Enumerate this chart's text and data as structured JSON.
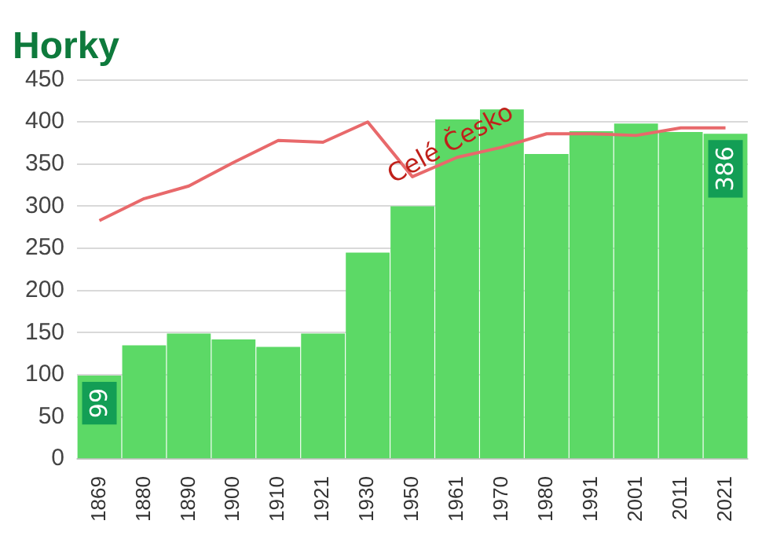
{
  "chart_data": {
    "type": "bar",
    "title": "Horky",
    "categories": [
      "1869",
      "1880",
      "1890",
      "1900",
      "1910",
      "1921",
      "1930",
      "1950",
      "1961",
      "1970",
      "1980",
      "1991",
      "2001",
      "2011",
      "2021"
    ],
    "series": [
      {
        "color": "#5cd966",
        "values": [
          99,
          135,
          149,
          142,
          133,
          149,
          245,
          300,
          403,
          415,
          362,
          389,
          398,
          388,
          386
        ],
        "value_labels": [
          "99",
          null,
          null,
          null,
          null,
          null,
          null,
          null,
          null,
          null,
          null,
          null,
          null,
          null,
          "386"
        ]
      },
      {
        "type": "line",
        "name": "Celé Česko",
        "color": "#e8696b",
        "values": [
          283,
          309,
          324,
          352,
          378,
          376,
          400,
          335,
          358,
          370,
          386,
          386,
          384,
          393,
          393
        ]
      }
    ],
    "ylim": [
      0,
      450
    ],
    "yticks": [
      0,
      50,
      100,
      150,
      200,
      250,
      300,
      350,
      400,
      450
    ],
    "grid": "y",
    "legend": false,
    "marker": "none"
  }
}
